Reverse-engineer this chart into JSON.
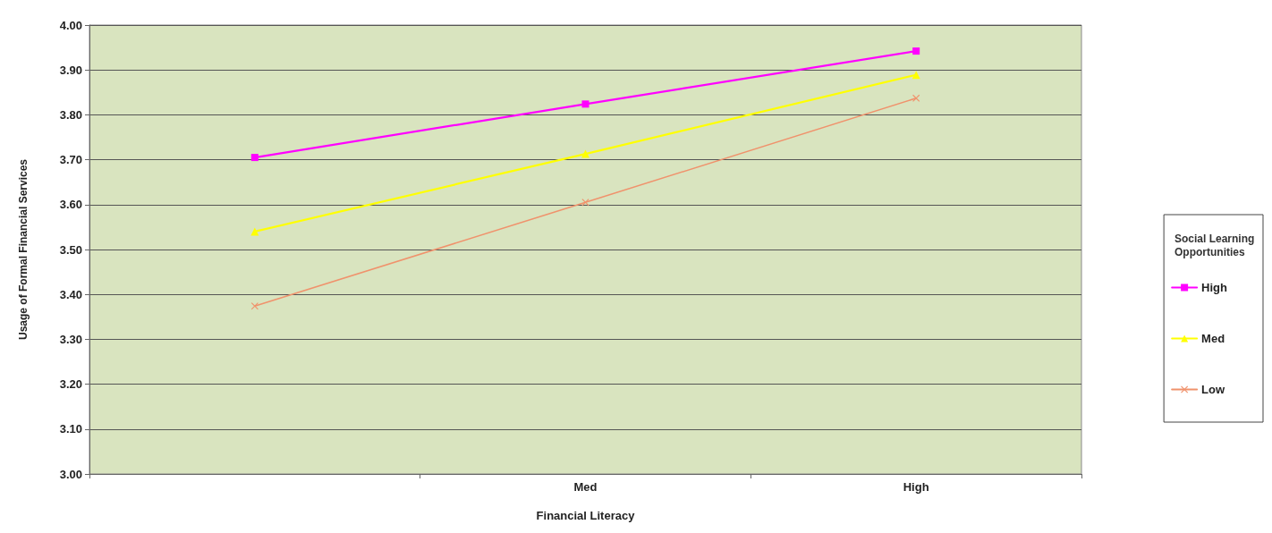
{
  "chart_data": {
    "type": "line",
    "xlabel": "Financial Literacy",
    "ylabel": "Usage of Formal Financial Services",
    "legend_title": "Social Learning Opportunities",
    "categories": [
      null,
      "Med",
      "High"
    ],
    "series": [
      {
        "name": "High",
        "color": "#ff00ff",
        "marker": "square",
        "values": [
          3.705,
          3.824,
          3.942
        ]
      },
      {
        "name": "Med",
        "color": "#ffff00",
        "marker": "triangle",
        "values": [
          3.54,
          3.713,
          3.889
        ]
      },
      {
        "name": "Low",
        "color": "#f0926c",
        "marker": "cross",
        "values": [
          3.374,
          3.605,
          3.837
        ]
      }
    ],
    "ylim": [
      3.0,
      4.0
    ],
    "yticks": [
      {
        "value": 3.0,
        "label": "3.00"
      },
      {
        "value": 3.1,
        "label": "3.10"
      },
      {
        "value": 3.2,
        "label": "3.20"
      },
      {
        "value": 3.3,
        "label": "3.30"
      },
      {
        "value": 3.4,
        "label": "3.40"
      },
      {
        "value": 3.5,
        "label": "3.50"
      },
      {
        "value": 3.6,
        "label": "3.60"
      },
      {
        "value": 3.7,
        "label": "3.70"
      },
      {
        "value": 3.8,
        "label": "3.80"
      },
      {
        "value": 3.9,
        "label": "3.90"
      },
      {
        "value": 4.0,
        "label": "4.00"
      }
    ],
    "grid": "y",
    "legend": "right",
    "line_style": "solid"
  }
}
